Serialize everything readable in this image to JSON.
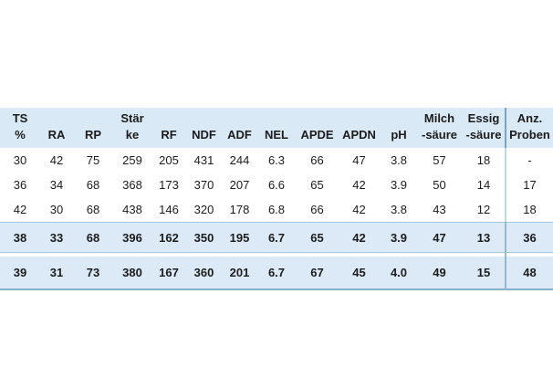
{
  "table": {
    "columns": [
      {
        "id": "ts",
        "lines": [
          "TS",
          "%"
        ]
      },
      {
        "id": "ra",
        "lines": [
          "RA"
        ]
      },
      {
        "id": "rp",
        "lines": [
          "RP"
        ]
      },
      {
        "id": "staerke",
        "lines": [
          "Stär",
          "ke"
        ]
      },
      {
        "id": "rf",
        "lines": [
          "RF"
        ]
      },
      {
        "id": "ndf",
        "lines": [
          "NDF"
        ]
      },
      {
        "id": "adf",
        "lines": [
          "ADF"
        ]
      },
      {
        "id": "nel",
        "lines": [
          "NEL"
        ]
      },
      {
        "id": "apde",
        "lines": [
          "APDE"
        ]
      },
      {
        "id": "apdn",
        "lines": [
          "APDN"
        ]
      },
      {
        "id": "ph",
        "lines": [
          "pH"
        ]
      },
      {
        "id": "milchsaeure",
        "lines": [
          "Milch",
          "-säure"
        ]
      },
      {
        "id": "essigsaeure",
        "lines": [
          "Essig",
          "-säure"
        ]
      },
      {
        "id": "anz_proben",
        "lines": [
          "Anz.",
          "Proben"
        ]
      }
    ],
    "rows": [
      {
        "values": [
          "30",
          "42",
          "75",
          "259",
          "205",
          "431",
          "244",
          "6.3",
          "66",
          "47",
          "3.8",
          "57",
          "18",
          "-"
        ]
      },
      {
        "values": [
          "36",
          "34",
          "68",
          "368",
          "173",
          "370",
          "207",
          "6.6",
          "65",
          "42",
          "3.9",
          "50",
          "14",
          "17"
        ]
      },
      {
        "values": [
          "42",
          "30",
          "68",
          "438",
          "146",
          "320",
          "178",
          "6.8",
          "66",
          "42",
          "3.8",
          "43",
          "12",
          "18"
        ]
      }
    ],
    "summary_rows": [
      {
        "values": [
          "38",
          "33",
          "68",
          "396",
          "162",
          "350",
          "195",
          "6.7",
          "65",
          "42",
          "3.9",
          "47",
          "13",
          "36"
        ]
      },
      {
        "values": [
          "39",
          "31",
          "73",
          "380",
          "167",
          "360",
          "201",
          "6.7",
          "67",
          "45",
          "4.0",
          "49",
          "15",
          "48"
        ]
      }
    ]
  },
  "colors": {
    "header_bg": "#d9e9f5",
    "summary_band_bg": "#dbeaf6",
    "band_border": "#a9c6da",
    "table_bottom_border": "#8aafc9",
    "separator_header": "#79a3c1",
    "separator_rows": "#bfd8e9",
    "separator_band": "#93b8d2",
    "text": "#1c1c1c",
    "page_bg": "#ffffff"
  }
}
